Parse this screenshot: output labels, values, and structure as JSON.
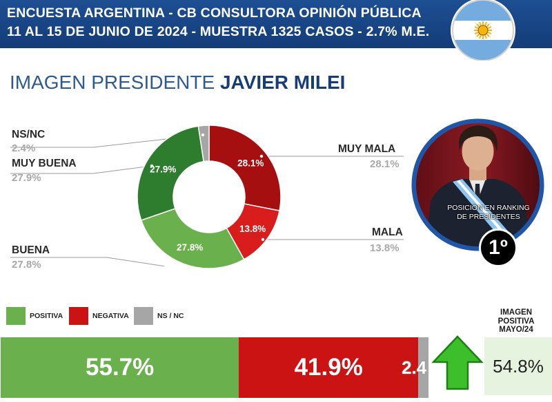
{
  "header": {
    "line1": "ENCUESTA ARGENTINA - CB CONSULTORA OPINIÓN PÚBLICA",
    "line2": "11 AL 15 DE JUNIO  DE 2024 - MUESTRA 1325 CASOS - 2.7% M.E."
  },
  "title": {
    "prefix": "IMAGEN PRESIDENTE",
    "name": "JAVIER MILEI"
  },
  "colors": {
    "header_bg": "#1a4585",
    "muy_buena": "#2e7d2e",
    "buena": "#6ab04c",
    "muy_mala": "#a50f0f",
    "mala": "#d91c1c",
    "nsnc": "#a6a6a6",
    "positiva": "#6ab04c",
    "negativa": "#cc1313",
    "arrow": "#3cbf2a"
  },
  "chart_data": [
    {
      "type": "pie",
      "title": "IMAGEN PRESIDENTE JAVIER MILEI",
      "style": "donut",
      "slices": [
        {
          "label": "MUY MALA",
          "value": 28.1,
          "display": "28.1%"
        },
        {
          "label": "MALA",
          "value": 13.8,
          "display": "13.8%"
        },
        {
          "label": "BUENA",
          "value": 27.8,
          "display": "27.8%"
        },
        {
          "label": "MUY BUENA",
          "value": 27.9,
          "display": "27.9%"
        },
        {
          "label": "NS/NC",
          "value": 2.4,
          "display": "2.4%"
        }
      ]
    },
    {
      "type": "bar",
      "orientation": "horizontal-stacked",
      "legend": [
        "POSITIVA",
        "NEGATIVA",
        "NS / NC"
      ],
      "segments": [
        {
          "label": "POSITIVA",
          "value": 55.7,
          "display": "55.7%"
        },
        {
          "label": "NEGATIVA",
          "value": 41.9,
          "display": "41.9%"
        },
        {
          "label": "NS / NC",
          "value": 2.4,
          "display": "2.4"
        }
      ]
    }
  ],
  "labels": {
    "nsnc": {
      "name": "NS/NC",
      "pct": "2.4%"
    },
    "muy_buena": {
      "name": "MUY BUENA",
      "pct": "27.9%"
    },
    "buena": {
      "name": "BUENA",
      "pct": "27.8%"
    },
    "muy_mala": {
      "name": "MUY MALA",
      "pct": "28.1%"
    },
    "mala": {
      "name": "MALA",
      "pct": "13.8%"
    }
  },
  "legend": {
    "positiva": "POSITIVA",
    "negativa": "NEGATIVA",
    "nsnc": "NS / NC"
  },
  "ranking": {
    "caption": "POSICIÓN EN RANKING DE PRESIDENTES",
    "position": "1º"
  },
  "previous": {
    "label_line1": "IMAGEN",
    "label_line2": "POSITIVA",
    "label_line3": "MAYO/24",
    "value": "54.8%",
    "trend": "up-arrow-icon"
  }
}
